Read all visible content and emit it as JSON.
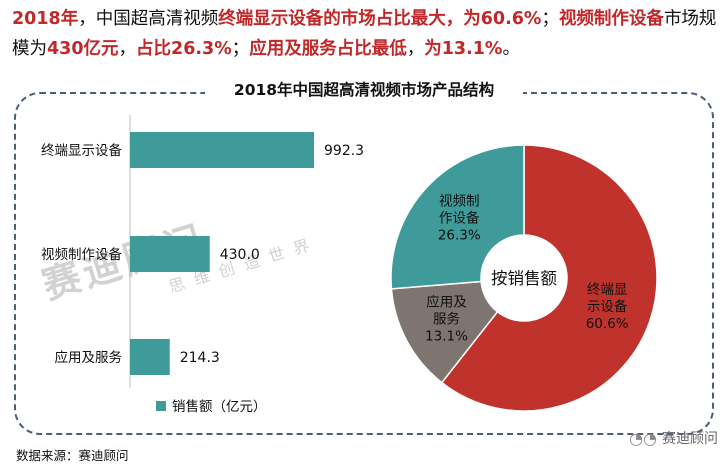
{
  "headline": {
    "p1": "2018年",
    "p2": "，中国超高清视频",
    "p3": "终端显示设备的市场占比最大，为60.6%",
    "p4": "；",
    "p5": "视频制作设备",
    "p6": "市场规模为",
    "p7": "430亿元",
    "p8": "，",
    "p9": "占比26.3%",
    "p10": "；",
    "p11": "应用及服务占比最低",
    "p12": "，",
    "p13": "为13.1%",
    "p14": "。"
  },
  "watermark": {
    "main": "赛迪顾问",
    "sub": "思维创造世界"
  },
  "footer": {
    "source": "数据来源：赛迪顾问"
  },
  "brand": {
    "icon": "wechat-icon",
    "name": "赛迪顾问"
  },
  "colors": {
    "teal": "#3f9a9a",
    "red": "#c0332d",
    "gray": "#7e7570",
    "accent": "#c0282a"
  },
  "chart_data": [
    {
      "type": "bar",
      "orientation": "horizontal",
      "title": "2018年中国超高清视频市场产品结构",
      "categories": [
        "终端显示设备",
        "视频制作设备",
        "应用及服务"
      ],
      "values": [
        992.3,
        430.0,
        214.3
      ],
      "value_labels": [
        "992.3",
        "430.0",
        "214.3"
      ],
      "legend": "销售额（亿元）",
      "xlim": [
        0,
        992.3
      ]
    },
    {
      "type": "pie",
      "center_label": "按销售额",
      "slices": [
        {
          "label1": "终端显",
          "label2": "示设备",
          "pct_label": "60.6%",
          "value": 60.6,
          "color": "#c0332d"
        },
        {
          "label1": "应用及",
          "label2": "服务",
          "pct_label": "13.1%",
          "value": 13.1,
          "color": "#7e7570"
        },
        {
          "label1": "视频制",
          "label2": "作设备",
          "pct_label": "26.3%",
          "value": 26.3,
          "color": "#3f9a9a"
        }
      ]
    }
  ]
}
